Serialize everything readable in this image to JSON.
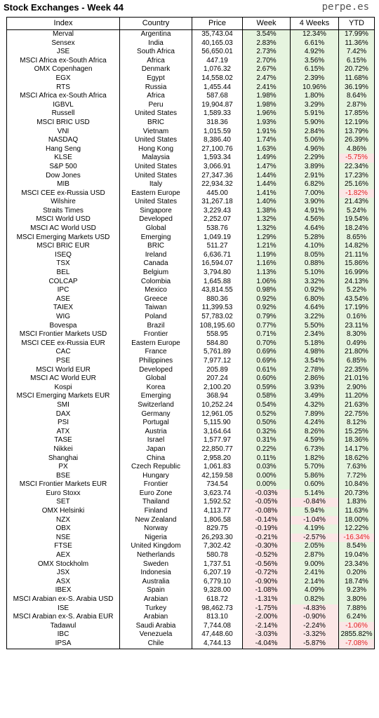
{
  "title": "Stock Exchanges - Week 44",
  "brand": "perpe.es",
  "colors": {
    "positive_bg": "#e6f4df",
    "negative_bg": "#fbe6e6",
    "negative_text": "#e02020"
  },
  "columns": [
    "Index",
    "Country",
    "Price",
    "Week",
    "4 Weeks",
    "YTD"
  ],
  "rows": [
    [
      "Merval",
      "Argentina",
      "35,743.04",
      "3.54%",
      "12.34%",
      "17.99%"
    ],
    [
      "Sensex",
      "India",
      "40,165.03",
      "2.83%",
      "6.61%",
      "11.36%"
    ],
    [
      "JSE",
      "South Africa",
      "56,650.01",
      "2.73%",
      "4.92%",
      "7.42%"
    ],
    [
      "MSCI Africa ex-South Africa",
      "Africa",
      "447.19",
      "2.70%",
      "3.56%",
      "6.15%"
    ],
    [
      "OMX Copenhagen",
      "Denmark",
      "1,076.32",
      "2.67%",
      "6.15%",
      "20.72%"
    ],
    [
      "EGX",
      "Egypt",
      "14,558.02",
      "2.47%",
      "2.39%",
      "11.68%"
    ],
    [
      "RTS",
      "Russia",
      "1,455.44",
      "2.41%",
      "10.96%",
      "36.19%"
    ],
    [
      "MSCI Africa ex-South Africa",
      "Africa",
      "587.68",
      "1.98%",
      "1.80%",
      "8.64%"
    ],
    [
      "IGBVL",
      "Peru",
      "19,904.87",
      "1.98%",
      "3.29%",
      "2.87%"
    ],
    [
      "Russell",
      "United States",
      "1,589.33",
      "1.96%",
      "5.91%",
      "17.85%"
    ],
    [
      "MSCI BRIC USD",
      "BRIC",
      "318.36",
      "1.93%",
      "5.90%",
      "12.19%"
    ],
    [
      "VNI",
      "Vietnam",
      "1,015.59",
      "1.91%",
      "2.84%",
      "13.79%"
    ],
    [
      "NASDAQ",
      "United States",
      "8,386.40",
      "1.74%",
      "5.06%",
      "26.39%"
    ],
    [
      "Hang Seng",
      "Hong Kong",
      "27,100.76",
      "1.63%",
      "4.96%",
      "4.86%"
    ],
    [
      "KLSE",
      "Malaysia",
      "1,593.34",
      "1.49%",
      "2.29%",
      "-5.75%"
    ],
    [
      "S&P 500",
      "United States",
      "3,066.91",
      "1.47%",
      "3.89%",
      "22.34%"
    ],
    [
      "Dow Jones",
      "United States",
      "27,347.36",
      "1.44%",
      "2.91%",
      "17.23%"
    ],
    [
      "MIB",
      "Italy",
      "22,934.32",
      "1.44%",
      "6.82%",
      "25.16%"
    ],
    [
      "MSCI CEE ex-Russia USD",
      "Eastern Europe",
      "445.00",
      "1.41%",
      "7.00%",
      "-1.82%"
    ],
    [
      "Wilshire",
      "United States",
      "31,267.18",
      "1.40%",
      "3.90%",
      "21.43%"
    ],
    [
      "Straits Times",
      "Singapore",
      "3,229.43",
      "1.38%",
      "4.91%",
      "5.24%"
    ],
    [
      "MSCI World USD",
      "Developed",
      "2,252.07",
      "1.32%",
      "4.56%",
      "19.54%"
    ],
    [
      "MSCI AC World USD",
      "Global",
      "538.76",
      "1.32%",
      "4.64%",
      "18.24%"
    ],
    [
      "MSCI Emerging Markets USD",
      "Emerging",
      "1,049.19",
      "1.29%",
      "5.28%",
      "8.65%"
    ],
    [
      "MSCI BRIC EUR",
      "BRIC",
      "511.27",
      "1.21%",
      "4.10%",
      "14.82%"
    ],
    [
      "ISEQ",
      "Ireland",
      "6,636.71",
      "1.19%",
      "8.05%",
      "21.11%"
    ],
    [
      "TSX",
      "Canada",
      "16,594.07",
      "1.16%",
      "0.88%",
      "15.86%"
    ],
    [
      "BEL",
      "Belgium",
      "3,794.80",
      "1.13%",
      "5.10%",
      "16.99%"
    ],
    [
      "COLCAP",
      "Colombia",
      "1,645.88",
      "1.06%",
      "3.32%",
      "24.13%"
    ],
    [
      "IPC",
      "Mexico",
      "43,814.55",
      "0.98%",
      "0.92%",
      "5.22%"
    ],
    [
      "ASE",
      "Greece",
      "880.36",
      "0.92%",
      "6.80%",
      "43.54%"
    ],
    [
      "TAIEX",
      "Taiwan",
      "11,399.53",
      "0.92%",
      "4.64%",
      "17.19%"
    ],
    [
      "WIG",
      "Poland",
      "57,783.02",
      "0.79%",
      "3.22%",
      "0.16%"
    ],
    [
      "Bovespa",
      "Brazil",
      "108,195.60",
      "0.77%",
      "5.50%",
      "23.11%"
    ],
    [
      "MSCI Frontier Markets USD",
      "Frontier",
      "558.95",
      "0.71%",
      "2.34%",
      "8.30%"
    ],
    [
      "MSCI CEE ex-Russia EUR",
      "Eastern Europe",
      "584.80",
      "0.70%",
      "5.18%",
      "0.49%"
    ],
    [
      "CAC",
      "France",
      "5,761.89",
      "0.69%",
      "4.98%",
      "21.80%"
    ],
    [
      "PSE",
      "Philippines",
      "7,977.12",
      "0.69%",
      "3.54%",
      "6.85%"
    ],
    [
      "MSCI World EUR",
      "Developed",
      "205.89",
      "0.61%",
      "2.78%",
      "22.35%"
    ],
    [
      "MSCI AC World EUR",
      "Global",
      "207.24",
      "0.60%",
      "2.86%",
      "21.01%"
    ],
    [
      "Kospi",
      "Korea",
      "2,100.20",
      "0.59%",
      "3.93%",
      "2.90%"
    ],
    [
      "MSCI Emerging Markets EUR",
      "Emerging",
      "368.94",
      "0.58%",
      "3.49%",
      "11.20%"
    ],
    [
      "SMI",
      "Switzerland",
      "10,252.24",
      "0.54%",
      "4.32%",
      "21.63%"
    ],
    [
      "DAX",
      "Germany",
      "12,961.05",
      "0.52%",
      "7.89%",
      "22.75%"
    ],
    [
      "PSI",
      "Portugal",
      "5,115.90",
      "0.50%",
      "4.24%",
      "8.12%"
    ],
    [
      "ATX",
      "Austria",
      "3,164.64",
      "0.32%",
      "8.26%",
      "15.25%"
    ],
    [
      "TASE",
      "Israel",
      "1,577.97",
      "0.31%",
      "4.59%",
      "18.36%"
    ],
    [
      "Nikkei",
      "Japan",
      "22,850.77",
      "0.22%",
      "6.73%",
      "14.17%"
    ],
    [
      "Shanghai",
      "China",
      "2,958.20",
      "0.11%",
      "1.82%",
      "18.62%"
    ],
    [
      "PX",
      "Czech Republic",
      "1,061.83",
      "0.03%",
      "5.70%",
      "7.63%"
    ],
    [
      "BSE",
      "Hungary",
      "42,159.58",
      "0.00%",
      "5.86%",
      "7.72%"
    ],
    [
      "MSCI Frontier Markets EUR",
      "Frontier",
      "734.54",
      "0.00%",
      "0.60%",
      "10.84%"
    ],
    [
      "Euro Stoxx",
      "Euro Zone",
      "3,623.74",
      "-0.03%",
      "5.14%",
      "20.73%"
    ],
    [
      "SET",
      "Thailand",
      "1,592.52",
      "-0.05%",
      "-0.84%",
      "1.83%"
    ],
    [
      "OMX Helsinki",
      "Finland",
      "4,113.77",
      "-0.08%",
      "5.94%",
      "11.63%"
    ],
    [
      "NZX",
      "New Zealand",
      "1,806.58",
      "-0.14%",
      "-1.04%",
      "18.00%"
    ],
    [
      "OBX",
      "Norway",
      "829.75",
      "-0.19%",
      "4.19%",
      "12.22%"
    ],
    [
      "NSE",
      "Nigeria",
      "26,293.30",
      "-0.21%",
      "-2.57%",
      "-16.34%"
    ],
    [
      "FTSE",
      "United Kingdom",
      "7,302.42",
      "-0.30%",
      "2.05%",
      "8.54%"
    ],
    [
      "AEX",
      "Netherlands",
      "580.78",
      "-0.52%",
      "2.87%",
      "19.04%"
    ],
    [
      "OMX Stockholm",
      "Sweden",
      "1,737.51",
      "-0.56%",
      "9.00%",
      "23.34%"
    ],
    [
      "JSX",
      "Indonesia",
      "6,207.19",
      "-0.72%",
      "2.41%",
      "0.20%"
    ],
    [
      "ASX",
      "Australia",
      "6,779.10",
      "-0.90%",
      "2.14%",
      "18.74%"
    ],
    [
      "IBEX",
      "Spain",
      "9,328.00",
      "-1.08%",
      "4.09%",
      "9.23%"
    ],
    [
      "MSCI Arabian ex-S. Arabia USD",
      "Arabian",
      "618.72",
      "-1.31%",
      "0.82%",
      "3.80%"
    ],
    [
      "ISE",
      "Turkey",
      "98,462.73",
      "-1.75%",
      "-4.83%",
      "7.88%"
    ],
    [
      "MSCI Arabian ex-S. Arabia EUR",
      "Arabian",
      "813.10",
      "-2.00%",
      "-0.90%",
      "6.24%"
    ],
    [
      "Tadawul",
      "Saudi Arabia",
      "7,744.08",
      "-2.14%",
      "-2.24%",
      "-1.06%"
    ],
    [
      "IBC",
      "Venezuela",
      "47,448.60",
      "-3.03%",
      "-3.32%",
      "2855.82%"
    ],
    [
      "IPSA",
      "Chile",
      "4,744.13",
      "-4.04%",
      "-5.87%",
      "-7.08%"
    ]
  ]
}
